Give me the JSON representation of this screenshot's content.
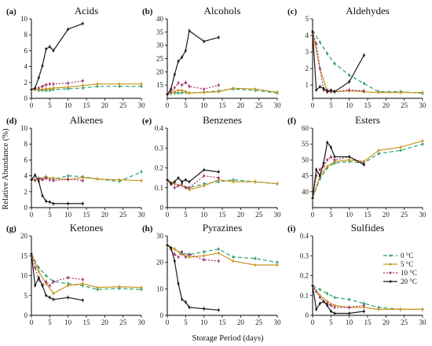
{
  "figure": {
    "ylabel": "Relative Abundance (%)",
    "xlabel": "Storage Period (days)"
  },
  "legend": {
    "entries": [
      {
        "name": "0 °C",
        "color": "#2e9e6b",
        "dash": "5,3"
      },
      {
        "name": "5 °C",
        "color": "#c8961e",
        "dash": ""
      },
      {
        "name": "10 °C",
        "color": "#a0306e",
        "dash": "2,2"
      },
      {
        "name": "20 °C",
        "color": "#1a1a1a",
        "dash": ""
      }
    ]
  },
  "chart_data": [
    {
      "type": "line",
      "panel_label": "(a)",
      "title": "Acids",
      "xlim": [
        0,
        30
      ],
      "ylim": [
        0,
        10
      ],
      "xticks": [
        0,
        5,
        10,
        15,
        20,
        25,
        30
      ],
      "yticks": [
        0,
        2,
        4,
        6,
        8,
        10
      ],
      "series": [
        {
          "name": "0 °C",
          "x": [
            0,
            1,
            2,
            3,
            4,
            5,
            6,
            10,
            14,
            18,
            24,
            30
          ],
          "y": [
            1.1,
            1.1,
            1.0,
            1.0,
            1.0,
            1.0,
            1.1,
            1.2,
            1.3,
            1.5,
            1.5,
            1.5
          ]
        },
        {
          "name": "5 °C",
          "x": [
            0,
            1,
            2,
            3,
            4,
            5,
            6,
            10,
            14,
            18,
            24,
            30
          ],
          "y": [
            1.1,
            1.1,
            1.1,
            1.1,
            1.2,
            1.2,
            1.3,
            1.4,
            1.6,
            1.8,
            1.8,
            1.8
          ]
        },
        {
          "name": "10 °C",
          "x": [
            0,
            1,
            2,
            3,
            4,
            5,
            6,
            10,
            14
          ],
          "y": [
            1.1,
            1.2,
            1.3,
            1.5,
            1.7,
            1.8,
            1.8,
            1.9,
            2.2
          ]
        },
        {
          "name": "20 °C",
          "x": [
            0,
            1,
            2,
            3,
            4,
            5,
            6,
            10,
            14
          ],
          "y": [
            1.1,
            1.3,
            2.6,
            4.1,
            6.2,
            6.5,
            6.0,
            8.7,
            9.4
          ]
        }
      ]
    },
    {
      "type": "line",
      "panel_label": "(b)",
      "title": "Alcohols",
      "xlim": [
        0,
        30
      ],
      "ylim": [
        10,
        40
      ],
      "xticks": [
        0,
        5,
        10,
        15,
        20,
        25,
        30
      ],
      "yticks": [
        15,
        20,
        25,
        30,
        35,
        40
      ],
      "series": [
        {
          "name": "0 °C",
          "x": [
            0,
            1,
            2,
            3,
            4,
            5,
            6,
            10,
            14,
            18,
            24,
            30
          ],
          "y": [
            11.5,
            11.8,
            12.0,
            12.0,
            12.1,
            12.2,
            12.0,
            12.3,
            12.8,
            13.5,
            13.0,
            12.0
          ]
        },
        {
          "name": "5 °C",
          "x": [
            0,
            1,
            2,
            3,
            4,
            5,
            6,
            10,
            14,
            18,
            24,
            30
          ],
          "y": [
            11.5,
            12.0,
            12.5,
            13.0,
            13.0,
            12.5,
            12.0,
            12.2,
            12.5,
            13.8,
            13.5,
            12.3
          ]
        },
        {
          "name": "10 °C",
          "x": [
            0,
            1,
            2,
            3,
            4,
            5,
            6,
            10,
            14
          ],
          "y": [
            11.5,
            12.5,
            14.0,
            15.8,
            15.0,
            16.0,
            14.5,
            13.5,
            15.0
          ]
        },
        {
          "name": "20 °C",
          "x": [
            0,
            1,
            2,
            3,
            4,
            5,
            6,
            10,
            14
          ],
          "y": [
            11.5,
            13.5,
            19.0,
            24.0,
            25.5,
            28.0,
            35.5,
            31.5,
            33.0
          ]
        }
      ]
    },
    {
      "type": "line",
      "panel_label": "(c)",
      "title": "Aldehydes",
      "xlim": [
        0,
        30
      ],
      "ylim": [
        0.2,
        5
      ],
      "xticks": [
        0,
        5,
        10,
        15,
        20,
        25,
        30
      ],
      "yticks": [
        1,
        2,
        3,
        4,
        5
      ],
      "series": [
        {
          "name": "0 °C",
          "x": [
            0,
            2,
            4,
            6,
            10,
            14,
            18,
            24,
            30
          ],
          "y": [
            4.3,
            3.6,
            2.9,
            2.3,
            1.6,
            1.1,
            0.6,
            0.6,
            0.5
          ]
        },
        {
          "name": "5 °C",
          "x": [
            0,
            2,
            4,
            6,
            10,
            14,
            18,
            24,
            30
          ],
          "y": [
            4.2,
            2.0,
            0.6,
            0.6,
            0.65,
            0.6,
            0.55,
            0.55,
            0.55
          ]
        },
        {
          "name": "10 °C",
          "x": [
            0,
            1,
            2,
            3,
            4,
            5,
            6,
            10,
            14
          ],
          "y": [
            4.2,
            3.5,
            2.0,
            0.7,
            0.7,
            0.6,
            0.6,
            0.7,
            0.65
          ]
        },
        {
          "name": "20 °C",
          "x": [
            0,
            1,
            2,
            3,
            4,
            5,
            6,
            10,
            14
          ],
          "y": [
            4.2,
            0.7,
            0.9,
            0.8,
            0.6,
            0.7,
            0.6,
            1.2,
            2.8
          ]
        }
      ]
    },
    {
      "type": "line",
      "panel_label": "(d)",
      "title": "Alkenes",
      "xlim": [
        0,
        30
      ],
      "ylim": [
        0,
        10
      ],
      "xticks": [
        0,
        5,
        10,
        15,
        20,
        25,
        30
      ],
      "yticks": [
        0,
        2,
        4,
        6,
        8,
        10
      ],
      "series": [
        {
          "name": "0 °C",
          "x": [
            0,
            2,
            4,
            6,
            10,
            14,
            18,
            24,
            30
          ],
          "y": [
            3.5,
            3.7,
            3.9,
            3.6,
            4.0,
            3.9,
            3.6,
            3.3,
            4.5
          ]
        },
        {
          "name": "5 °C",
          "x": [
            0,
            2,
            4,
            6,
            10,
            14,
            18,
            24,
            30
          ],
          "y": [
            3.5,
            3.6,
            3.8,
            3.7,
            3.5,
            3.8,
            3.6,
            3.5,
            3.4
          ]
        },
        {
          "name": "10 °C",
          "x": [
            0,
            1,
            2,
            3,
            4,
            5,
            6,
            10,
            14
          ],
          "y": [
            3.5,
            3.4,
            3.6,
            3.5,
            3.7,
            3.5,
            3.4,
            3.6,
            3.4
          ]
        },
        {
          "name": "20 °C",
          "x": [
            0,
            1,
            2,
            3,
            4,
            5,
            6,
            10,
            14
          ],
          "y": [
            3.5,
            4.1,
            3.3,
            1.5,
            0.8,
            0.7,
            0.5,
            0.5,
            0.5
          ]
        }
      ]
    },
    {
      "type": "line",
      "panel_label": "(e)",
      "title": "Benzenes",
      "xlim": [
        0,
        30
      ],
      "ylim": [
        0,
        0.4
      ],
      "xticks": [
        0,
        5,
        10,
        15,
        20,
        25,
        30
      ],
      "yticks": [
        0,
        0.1,
        0.2,
        0.3,
        0.4
      ],
      "series": [
        {
          "name": "0 °C",
          "x": [
            0,
            2,
            4,
            6,
            10,
            14,
            18,
            24,
            30
          ],
          "y": [
            0.14,
            0.12,
            0.11,
            0.1,
            0.12,
            0.13,
            0.14,
            0.13,
            0.12
          ]
        },
        {
          "name": "5 °C",
          "x": [
            0,
            2,
            4,
            6,
            10,
            14,
            18,
            24,
            30
          ],
          "y": [
            0.14,
            0.12,
            0.11,
            0.09,
            0.11,
            0.14,
            0.13,
            0.13,
            0.12
          ]
        },
        {
          "name": "10 °C",
          "x": [
            0,
            1,
            2,
            3,
            4,
            5,
            6,
            10,
            14
          ],
          "y": [
            0.14,
            0.12,
            0.1,
            0.11,
            0.12,
            0.1,
            0.1,
            0.16,
            0.15
          ]
        },
        {
          "name": "20 °C",
          "x": [
            0,
            1,
            2,
            3,
            4,
            5,
            6,
            10,
            14
          ],
          "y": [
            0.14,
            0.12,
            0.13,
            0.15,
            0.13,
            0.14,
            0.13,
            0.19,
            0.18
          ]
        }
      ]
    },
    {
      "type": "line",
      "panel_label": "(f)",
      "title": "Esters",
      "xlim": [
        0,
        30
      ],
      "ylim": [
        35,
        60
      ],
      "xticks": [
        0,
        5,
        10,
        15,
        20,
        25,
        30
      ],
      "yticks": [
        40,
        45,
        50,
        55,
        60
      ],
      "series": [
        {
          "name": "0 °C",
          "x": [
            0,
            2,
            4,
            6,
            10,
            14,
            18,
            24,
            30
          ],
          "y": [
            38.0,
            44.0,
            47.5,
            49.0,
            49.5,
            49.0,
            52.0,
            53.0,
            55.0
          ]
        },
        {
          "name": "5 °C",
          "x": [
            0,
            2,
            4,
            6,
            10,
            14,
            18,
            24,
            30
          ],
          "y": [
            38.0,
            45.0,
            48.0,
            49.5,
            50.0,
            49.5,
            53.0,
            54.0,
            56.0
          ]
        },
        {
          "name": "10 °C",
          "x": [
            0,
            1,
            2,
            3,
            4,
            5,
            6,
            10,
            14
          ],
          "y": [
            38.0,
            45.0,
            47.0,
            48.0,
            50.0,
            51.0,
            50.0,
            51.0,
            49.0
          ]
        },
        {
          "name": "20 °C",
          "x": [
            0,
            1,
            2,
            3,
            4,
            5,
            6,
            10,
            14
          ],
          "y": [
            38.0,
            47.0,
            45.0,
            49.0,
            55.5,
            54.0,
            51.0,
            51.0,
            48.5
          ]
        }
      ]
    },
    {
      "type": "line",
      "panel_label": "(g)",
      "title": "Ketones",
      "xlim": [
        0,
        30
      ],
      "ylim": [
        0,
        20
      ],
      "xticks": [
        0,
        5,
        10,
        15,
        20,
        25,
        30
      ],
      "yticks": [
        0,
        5,
        10,
        15,
        20
      ],
      "series": [
        {
          "name": "0 °C",
          "x": [
            0,
            2,
            4,
            6,
            10,
            14,
            18,
            24,
            30
          ],
          "y": [
            15.5,
            12.0,
            10.0,
            8.5,
            8.0,
            7.5,
            6.5,
            6.8,
            6.5
          ]
        },
        {
          "name": "5 °C",
          "x": [
            0,
            2,
            4,
            6,
            10,
            14,
            18,
            24,
            30
          ],
          "y": [
            15.5,
            11.0,
            8.0,
            5.5,
            7.5,
            8.0,
            7.0,
            7.2,
            7.0
          ]
        },
        {
          "name": "10 °C",
          "x": [
            0,
            1,
            2,
            3,
            4,
            5,
            6,
            10,
            14
          ],
          "y": [
            15.5,
            12.0,
            9.0,
            7.5,
            8.5,
            7.5,
            8.5,
            9.5,
            9.0
          ]
        },
        {
          "name": "20 °C",
          "x": [
            0,
            1,
            2,
            3,
            4,
            5,
            6,
            10,
            14
          ],
          "y": [
            15.5,
            7.5,
            9.5,
            7.5,
            5.0,
            4.5,
            4.0,
            4.5,
            3.8
          ]
        }
      ]
    },
    {
      "type": "line",
      "panel_label": "(h)",
      "title": "Pyrazines",
      "xlim": [
        0,
        30
      ],
      "ylim": [
        0,
        30
      ],
      "xticks": [
        0,
        5,
        10,
        15,
        20,
        25,
        30
      ],
      "yticks": [
        0,
        10,
        20,
        30
      ],
      "series": [
        {
          "name": "0 °C",
          "x": [
            0,
            2,
            4,
            6,
            10,
            14,
            18,
            24,
            30
          ],
          "y": [
            26.5,
            25.0,
            23.5,
            23.0,
            24.0,
            25.0,
            22.0,
            21.5,
            20.0
          ]
        },
        {
          "name": "5 °C",
          "x": [
            0,
            2,
            4,
            6,
            10,
            14,
            18,
            24,
            30
          ],
          "y": [
            26.5,
            25.0,
            23.0,
            22.0,
            22.5,
            23.5,
            20.5,
            19.0,
            19.0
          ]
        },
        {
          "name": "10 °C",
          "x": [
            0,
            1,
            2,
            3,
            4,
            5,
            6,
            10,
            14
          ],
          "y": [
            26.5,
            25.0,
            23.0,
            22.0,
            24.0,
            22.0,
            23.0,
            21.0,
            20.5
          ]
        },
        {
          "name": "20 °C",
          "x": [
            0,
            1,
            2,
            3,
            4,
            5,
            6,
            10,
            14
          ],
          "y": [
            26.5,
            25.5,
            20.5,
            12.0,
            6.0,
            5.0,
            3.0,
            2.5,
            2.0
          ]
        }
      ]
    },
    {
      "type": "line",
      "panel_label": "(i)",
      "title": "Sulfides",
      "xlim": [
        0,
        30
      ],
      "ylim": [
        0,
        0.4
      ],
      "xticks": [
        0,
        5,
        10,
        15,
        20,
        25,
        30
      ],
      "yticks": [
        0,
        0.1,
        0.2,
        0.3,
        0.4
      ],
      "series": [
        {
          "name": "0 °C",
          "x": [
            0,
            2,
            4,
            6,
            10,
            14,
            18,
            24,
            30
          ],
          "y": [
            0.15,
            0.13,
            0.11,
            0.09,
            0.08,
            0.06,
            0.04,
            0.03,
            0.03
          ]
        },
        {
          "name": "5 °C",
          "x": [
            0,
            2,
            4,
            6,
            10,
            14,
            18,
            24,
            30
          ],
          "y": [
            0.15,
            0.1,
            0.07,
            0.05,
            0.04,
            0.04,
            0.03,
            0.03,
            0.03
          ]
        },
        {
          "name": "10 °C",
          "x": [
            0,
            1,
            2,
            3,
            4,
            5,
            6,
            10,
            14
          ],
          "y": [
            0.15,
            0.12,
            0.09,
            0.07,
            0.06,
            0.05,
            0.04,
            0.04,
            0.05
          ]
        },
        {
          "name": "20 °C",
          "x": [
            0,
            1,
            2,
            3,
            4,
            5,
            6,
            10,
            14
          ],
          "y": [
            0.15,
            0.03,
            0.06,
            0.07,
            0.05,
            0.02,
            0.01,
            0.01,
            0.02
          ]
        }
      ]
    }
  ]
}
